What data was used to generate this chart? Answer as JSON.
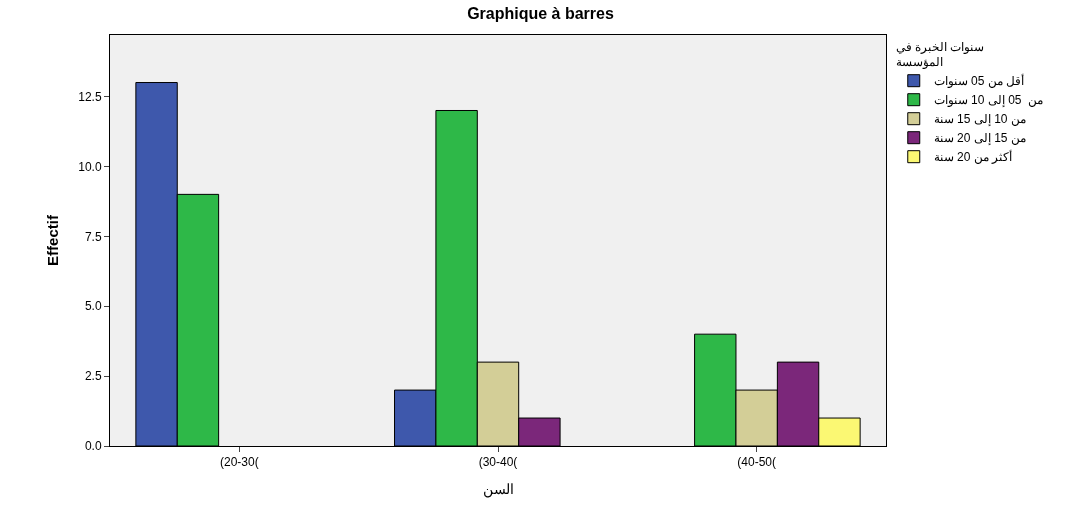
{
  "chart_data": {
    "type": "bar",
    "title": "Graphique à barres",
    "xlabel": "السن",
    "ylabel": "Effectif",
    "legend_title": "سنوات الخبرة في\nالمؤسسة",
    "categories": [
      "(20-30(",
      "(30-40(",
      "(40-50("
    ],
    "series": [
      {
        "name": "أقل من 05 سنوات",
        "color": "#3e58ac",
        "values": [
          13,
          2,
          null
        ]
      },
      {
        "name": "من  05 إلى 10 سنوات",
        "color": "#2eb848",
        "values": [
          9,
          12,
          4
        ]
      },
      {
        "name": "من 10 إلى 15 سنة",
        "color": "#d3ce97",
        "values": [
          null,
          3,
          2
        ]
      },
      {
        "name": "من 15 إلى 20 سنة",
        "color": "#7b277a",
        "values": [
          null,
          1,
          3
        ]
      },
      {
        "name": "أكثر من 20 سنة",
        "color": "#fbf873",
        "values": [
          null,
          null,
          1
        ]
      }
    ],
    "ylim": [
      0,
      14.7
    ],
    "yticks": [
      {
        "value": 0,
        "label": "0.0"
      },
      {
        "value": 2.5,
        "label": "2.5"
      },
      {
        "value": 5,
        "label": "5.0"
      },
      {
        "value": 7.5,
        "label": "7.5"
      },
      {
        "value": 10,
        "label": "10.0"
      },
      {
        "value": 12.5,
        "label": "12.5"
      }
    ],
    "grid": false,
    "legend": "top right"
  }
}
